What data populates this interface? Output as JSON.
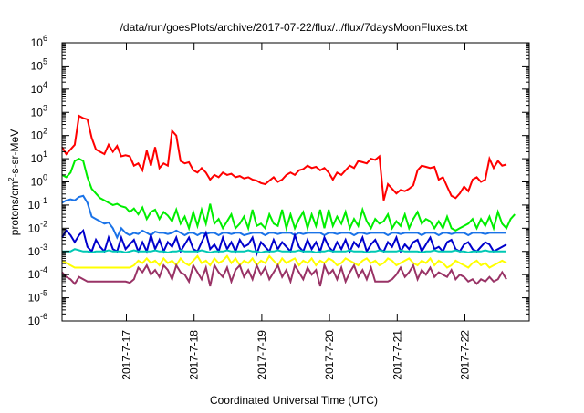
{
  "chart_data": {
    "type": "line",
    "title": "/data/run/goesPlots/archive/2017-07-22/flux/../flux/7daysMoonFluxes.txt",
    "xlabel": "Coordinated Universal Time (UTC)",
    "ylabel_main": "protons/cm",
    "ylabel_sup": "2",
    "ylabel_rest": "-s-sr-MeV",
    "y_scale": "log",
    "ylim_exp": [
      -6,
      6
    ],
    "y_ticks": [
      {
        "base": "10",
        "exp": "-6"
      },
      {
        "base": "10",
        "exp": "-5"
      },
      {
        "base": "10",
        "exp": "-4"
      },
      {
        "base": "10",
        "exp": "-3"
      },
      {
        "base": "10",
        "exp": "-2"
      },
      {
        "base": "10",
        "exp": "-1"
      },
      {
        "base": "10",
        "exp": "0"
      },
      {
        "base": "10",
        "exp": "1"
      },
      {
        "base": "10",
        "exp": "2"
      },
      {
        "base": "10",
        "exp": "3"
      },
      {
        "base": "10",
        "exp": "4"
      },
      {
        "base": "10",
        "exp": "5"
      },
      {
        "base": "10",
        "exp": "6"
      }
    ],
    "xlim_days": [
      0,
      6.9
    ],
    "x_ticks": [
      {
        "label": "2017-7-17",
        "day": 0.95
      },
      {
        "label": "2017-7-18",
        "day": 1.95
      },
      {
        "label": "2017-7-19",
        "day": 2.95
      },
      {
        "label": "2017-7-20",
        "day": 3.95
      },
      {
        "label": "2017-7-21",
        "day": 4.95
      },
      {
        "label": "2017-7-22",
        "day": 5.95
      }
    ],
    "grid": false,
    "legend": "none",
    "series": [
      {
        "color": "#ff0000",
        "sample_days": 0.0625,
        "log10_values": [
          1.5,
          1.2,
          1.4,
          1.6,
          2.85,
          2.75,
          2.7,
          1.9,
          1.4,
          1.3,
          1.2,
          1.6,
          1.3,
          1.55,
          1.1,
          1.15,
          1.1,
          0.7,
          0.8,
          0.5,
          1.35,
          0.7,
          1.5,
          0.6,
          0.8,
          0.7,
          2.2,
          2.0,
          0.9,
          0.8,
          0.85,
          0.5,
          0.4,
          0.6,
          0.4,
          0.1,
          0.3,
          0.2,
          0.4,
          0.3,
          0.35,
          0.2,
          0.25,
          0.15,
          0.2,
          0.1,
          0.05,
          -0.05,
          -0.1,
          0.05,
          0.2,
          0.0,
          0.1,
          0.3,
          0.4,
          0.3,
          0.5,
          0.55,
          0.7,
          0.6,
          0.65,
          0.5,
          0.6,
          0.4,
          0.1,
          0.4,
          0.3,
          0.5,
          0.7,
          0.6,
          0.9,
          0.85,
          0.8,
          1.0,
          0.95,
          1.1,
          -0.8,
          -0.1,
          -0.3,
          -0.5,
          -0.35,
          -0.4,
          -0.3,
          -0.15,
          0.5,
          0.7,
          0.65,
          0.6,
          0.65,
          0.1,
          0.2,
          -0.2,
          -0.6,
          -0.7,
          -0.5,
          -0.2,
          -0.4,
          0.1,
          0.2,
          0.0,
          0.1,
          1.0,
          0.6,
          0.9,
          0.7,
          0.75
        ]
      },
      {
        "color": "#00ee00",
        "sample_days": 0.0625,
        "log10_values": [
          0.3,
          0.2,
          0.4,
          0.9,
          1.0,
          0.9,
          0.2,
          -0.3,
          -0.5,
          -0.7,
          -0.8,
          -0.9,
          -1.0,
          -0.95,
          -1.05,
          -1.1,
          -1.3,
          -1.15,
          -1.4,
          -1.1,
          -1.6,
          -1.3,
          -1.2,
          -1.6,
          -1.3,
          -1.45,
          -1.7,
          -1.2,
          -1.8,
          -1.5,
          -2.0,
          -1.3,
          -1.9,
          -1.2,
          -1.8,
          -0.95,
          -1.8,
          -1.6,
          -2.0,
          -1.7,
          -1.4,
          -2.0,
          -1.8,
          -1.5,
          -2.0,
          -1.2,
          -1.9,
          -1.8,
          -2.0,
          -1.4,
          -1.8,
          -1.9,
          -1.2,
          -2.0,
          -1.4,
          -2.0,
          -1.6,
          -1.3,
          -2.0,
          -1.4,
          -1.9,
          -1.2,
          -2.0,
          -1.2,
          -1.9,
          -1.5,
          -1.8,
          -1.3,
          -2.0,
          -1.6,
          -1.9,
          -1.2,
          -1.7,
          -2.0,
          -1.6,
          -1.8,
          -1.7,
          -1.4,
          -2.0,
          -1.7,
          -1.9,
          -1.4,
          -2.0,
          -1.6,
          -1.3,
          -1.8,
          -1.6,
          -1.7,
          -2.0,
          -1.7,
          -2.0,
          -1.5,
          -2.0,
          -2.1,
          -2.0,
          -1.9,
          -1.8,
          -1.6,
          -2.0,
          -1.6,
          -1.9,
          -1.5,
          -2.0,
          -1.3,
          -1.8,
          -2.0,
          -1.6,
          -1.4
        ]
      },
      {
        "color": "#1a73e8",
        "sample_days": 0.0625,
        "log10_values": [
          -0.9,
          -0.8,
          -0.75,
          -0.8,
          -0.65,
          -0.6,
          -0.9,
          -1.5,
          -1.6,
          -1.7,
          -1.8,
          -1.75,
          -2.0,
          -2.4,
          -2.0,
          -2.2,
          -2.3,
          -2.2,
          -2.25,
          -2.1,
          -2.2,
          -2.3,
          -2.15,
          -2.2,
          -2.2,
          -2.25,
          -2.2,
          -2.1,
          -2.2,
          -2.3,
          -2.2,
          -2.2,
          -2.3,
          -2.2,
          -2.25,
          -2.2,
          -2.2,
          -2.3,
          -2.2,
          -2.2,
          -2.25,
          -2.2,
          -2.2,
          -2.3,
          -2.25,
          -2.2,
          -2.2,
          -2.2,
          -2.3,
          -2.2,
          -2.2,
          -2.25,
          -2.2,
          -2.2,
          -2.2,
          -2.3,
          -2.2,
          -2.25,
          -2.2,
          -2.2,
          -2.2,
          -2.2,
          -2.3,
          -2.2,
          -2.2,
          -2.25,
          -2.2,
          -2.2,
          -2.2,
          -2.3,
          -2.2,
          -2.2,
          -2.25,
          -2.2,
          -2.2,
          -2.2,
          -2.2,
          -2.3,
          -2.2,
          -2.2,
          -2.25,
          -2.2,
          -2.2,
          -2.2,
          -2.2,
          -2.3,
          -2.2,
          -2.2,
          -2.2,
          -2.3,
          -2.2,
          -2.2,
          -2.25,
          -2.2,
          -2.2,
          -2.2,
          -2.3,
          -2.2,
          -2.2,
          -2.2,
          -2.25,
          -2.2,
          -2.2,
          -2.2,
          -2.2,
          -2.2
        ]
      },
      {
        "color": "#0000cc",
        "sample_days": 0.0625,
        "log10_values": [
          -2.4,
          -2.1,
          -2.3,
          -2.6,
          -2.3,
          -2.1,
          -2.8,
          -3.0,
          -2.5,
          -2.8,
          -3.0,
          -2.4,
          -2.9,
          -3.0,
          -2.4,
          -2.9,
          -2.7,
          -2.5,
          -3.0,
          -2.6,
          -3.0,
          -2.3,
          -2.9,
          -2.5,
          -3.0,
          -2.6,
          -2.8,
          -2.4,
          -3.0,
          -2.7,
          -2.4,
          -2.9,
          -3.0,
          -2.6,
          -2.2,
          -2.9,
          -2.7,
          -3.0,
          -2.4,
          -2.9,
          -2.6,
          -3.0,
          -2.5,
          -2.8,
          -2.7,
          -2.4,
          -3.1,
          -2.6,
          -2.8,
          -3.0,
          -2.5,
          -2.9,
          -2.6,
          -2.8,
          -3.0,
          -2.3,
          -2.8,
          -3.0,
          -2.5,
          -2.9,
          -2.6,
          -3.0,
          -2.4,
          -2.8,
          -3.0,
          -2.6,
          -2.9,
          -2.5,
          -3.0,
          -2.6,
          -2.8,
          -2.4,
          -3.0,
          -2.7,
          -2.5,
          -2.9,
          -3.0,
          -2.6,
          -2.8,
          -2.4,
          -3.0,
          -2.7,
          -2.9,
          -2.6,
          -2.5,
          -3.0,
          -2.7,
          -2.4,
          -2.9,
          -2.8,
          -3.0,
          -2.6,
          -2.5,
          -2.9,
          -3.0,
          -2.7,
          -2.6,
          -2.9,
          -3.0,
          -2.8,
          -2.6,
          -2.7,
          -3.0,
          -2.9,
          -2.8,
          -2.7
        ]
      },
      {
        "color": "#00c8b4",
        "sample_days": 0.0625,
        "log10_values": [
          -3.0,
          -3.0,
          -3.0,
          -2.9,
          -2.95,
          -3.0,
          -3.0,
          -3.05,
          -3.0,
          -3.0,
          -3.0,
          -2.95,
          -3.0,
          -3.0,
          -3.0,
          -3.05,
          -3.0,
          -2.95,
          -3.0,
          -3.0,
          -3.0,
          -3.0,
          -2.95,
          -3.0,
          -3.0,
          -3.05,
          -3.0,
          -3.0,
          -2.95,
          -3.0,
          -3.0,
          -3.0,
          -3.0,
          -2.95,
          -3.0,
          -3.05,
          -3.0,
          -3.0,
          -3.0,
          -2.95,
          -3.0,
          -3.0,
          -3.0,
          -3.0,
          -2.95,
          -3.0,
          -3.0,
          -3.05,
          -3.0,
          -3.0,
          -3.0,
          -2.95,
          -3.0,
          -3.0,
          -3.0,
          -3.0,
          -2.95,
          -3.0,
          -3.0,
          -3.0,
          -3.05,
          -3.0,
          -3.0,
          -2.95,
          -3.0,
          -3.0,
          -3.0,
          -3.0,
          -2.95,
          -3.0,
          -3.0,
          -3.0,
          -3.05,
          -3.0,
          -3.0,
          -2.95,
          -3.0,
          -3.0,
          -3.0,
          -3.0,
          -2.95,
          -3.0,
          -3.0,
          -3.0,
          -3.0,
          -3.05,
          -3.0,
          -3.0,
          -2.95,
          -3.0,
          -3.0,
          -3.0,
          -3.0,
          -2.95,
          -3.0,
          -3.0,
          -3.05,
          -3.0,
          -3.0,
          -3.0,
          -2.95,
          -3.0,
          -3.0,
          -3.0,
          -3.0,
          -3.0
        ]
      },
      {
        "color": "#ffff00",
        "sample_days": 0.0625,
        "log10_values": [
          -3.4,
          -3.5,
          -3.6,
          -3.7,
          -3.7,
          -3.7,
          -3.7,
          -3.7,
          -3.7,
          -3.7,
          -3.7,
          -3.7,
          -3.7,
          -3.7,
          -3.7,
          -3.7,
          -3.7,
          -3.6,
          -3.4,
          -3.5,
          -3.3,
          -3.5,
          -3.4,
          -3.6,
          -3.3,
          -3.5,
          -3.4,
          -3.6,
          -3.3,
          -3.5,
          -3.6,
          -3.4,
          -3.2,
          -3.5,
          -3.4,
          -3.6,
          -3.3,
          -3.5,
          -3.4,
          -3.2,
          -3.5,
          -3.3,
          -3.6,
          -3.4,
          -3.5,
          -3.3,
          -3.6,
          -3.4,
          -3.5,
          -3.2,
          -3.4,
          -3.6,
          -3.3,
          -3.5,
          -3.4,
          -3.3,
          -3.6,
          -3.4,
          -3.5,
          -3.3,
          -3.6,
          -3.4,
          -3.5,
          -3.3,
          -3.4,
          -3.6,
          -3.5,
          -3.3,
          -3.4,
          -3.5,
          -3.6,
          -3.4,
          -3.3,
          -3.5,
          -3.4,
          -3.6,
          -3.5,
          -3.3,
          -3.4,
          -3.6,
          -3.5,
          -3.4,
          -3.3,
          -3.5,
          -3.6,
          -3.4,
          -3.5,
          -3.3,
          -3.6,
          -3.4,
          -3.5,
          -3.7,
          -3.6,
          -3.4,
          -3.5,
          -3.6,
          -3.7,
          -3.5,
          -3.4,
          -3.6,
          -3.5,
          -3.7,
          -3.6,
          -3.5,
          -3.4,
          -3.5
        ]
      },
      {
        "color": "#993366",
        "sample_days": 0.0625,
        "log10_values": [
          -3.9,
          -4.1,
          -4.2,
          -4.4,
          -4.1,
          -4.2,
          -4.3,
          -4.3,
          -4.3,
          -4.3,
          -4.3,
          -4.3,
          -4.3,
          -4.3,
          -4.3,
          -4.3,
          -4.35,
          -4.2,
          -3.7,
          -3.9,
          -3.6,
          -4.0,
          -3.8,
          -4.1,
          -3.6,
          -3.8,
          -4.2,
          -3.6,
          -3.9,
          -4.0,
          -4.3,
          -3.6,
          -3.9,
          -4.2,
          -3.7,
          -4.5,
          -3.6,
          -3.9,
          -4.1,
          -3.7,
          -4.3,
          -3.8,
          -3.6,
          -4.1,
          -3.8,
          -4.2,
          -3.6,
          -4.0,
          -3.7,
          -4.2,
          -3.9,
          -3.6,
          -4.1,
          -3.8,
          -4.3,
          -3.6,
          -3.9,
          -4.2,
          -3.7,
          -4.0,
          -3.8,
          -4.5,
          -3.6,
          -4.0,
          -3.8,
          -4.2,
          -3.7,
          -4.3,
          -3.9,
          -3.6,
          -4.1,
          -3.8,
          -4.2,
          -3.7,
          -4.3,
          -4.3,
          -4.3,
          -4.3,
          -4.2,
          -4.0,
          -3.7,
          -4.1,
          -3.9,
          -3.6,
          -4.2,
          -3.8,
          -4.0,
          -3.7,
          -4.1,
          -3.9,
          -4.0,
          -4.1,
          -3.8,
          -4.2,
          -4.0,
          -4.1,
          -4.3,
          -4.2,
          -4.4,
          -4.2,
          -4.3,
          -4.1,
          -4.3,
          -4.2,
          -3.9,
          -4.2
        ]
      }
    ]
  }
}
